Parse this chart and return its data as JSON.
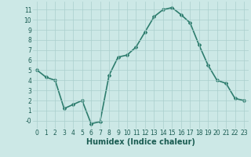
{
  "xlabel": "Humidex (Indice chaleur)",
  "x_values": [
    0,
    1,
    2,
    3,
    4,
    5,
    6,
    7,
    8,
    9,
    10,
    11,
    12,
    13,
    14,
    15,
    16,
    17,
    18,
    19,
    20,
    21,
    22,
    23
  ],
  "y_values": [
    5.0,
    4.3,
    4.0,
    1.2,
    1.6,
    2.0,
    -0.3,
    -0.1,
    4.5,
    6.3,
    6.5,
    7.3,
    8.8,
    10.3,
    11.0,
    11.2,
    10.5,
    9.7,
    7.5,
    5.5,
    4.0,
    3.7,
    2.2,
    2.0
  ],
  "line_color": "#2e7d6e",
  "marker": "D",
  "marker_size": 2,
  "bg_color": "#cce8e6",
  "grid_color": "#aacfcd",
  "tick_color": "#1a5c52",
  "ylim": [
    -0.8,
    11.8
  ],
  "yticks": [
    0,
    1,
    2,
    3,
    4,
    5,
    6,
    7,
    8,
    9,
    10,
    11
  ],
  "ytick_labels": [
    "-0",
    "1",
    "2",
    "3",
    "4",
    "5",
    "6",
    "7",
    "8",
    "9",
    "10",
    "11"
  ],
  "xticks": [
    0,
    1,
    2,
    3,
    4,
    5,
    6,
    7,
    8,
    9,
    10,
    11,
    12,
    13,
    14,
    15,
    16,
    17,
    18,
    19,
    20,
    21,
    22,
    23
  ],
  "xlabel_fontsize": 7,
  "tick_fontsize": 5.5,
  "line_width": 1.2
}
